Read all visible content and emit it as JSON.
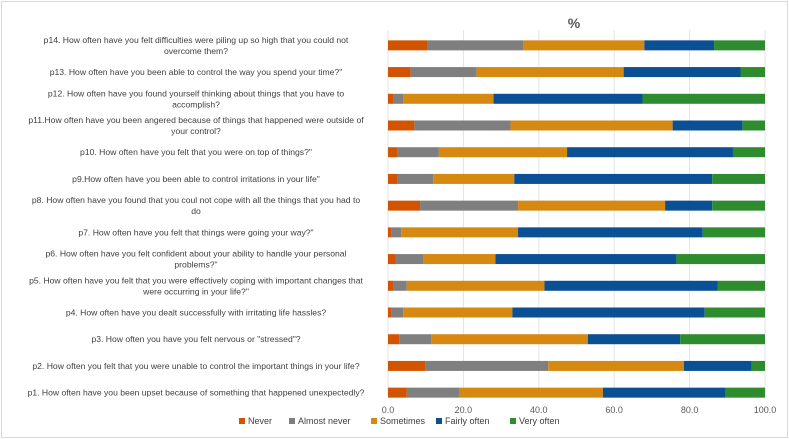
{
  "chart_data": {
    "type": "stacked-bar-horizontal",
    "title": "%",
    "xlabel": "",
    "ylabel": "",
    "xlim": [
      0,
      100
    ],
    "xticks": [
      "0.0",
      "20.0",
      "40.0",
      "60.0",
      "80.0",
      "100.0"
    ],
    "legend_position": "bottom",
    "categories": [
      [
        "p14. How often have you felt difficulties were piling up so high that you could not",
        "overcome them?"
      ],
      [
        "p13. How often have you been able to control the way you spend your time?\""
      ],
      [
        "p12. How often have you found yourself thinking about things that you have to",
        "accomplish?"
      ],
      [
        "p11.How often have you been angered because of things that happened were outside of",
        "your control?"
      ],
      [
        "p10. How often have you felt that you were on top of things?\""
      ],
      [
        "p9.How often have you been able to control irritations in your life\""
      ],
      [
        "p8. How often have you found that you coul not cope with all the things that you had to",
        "do"
      ],
      [
        "p7. How often have you felt that things were going your way?\""
      ],
      [
        "p6. How often have you felt confident about your ability to handle your personal",
        "problems?\""
      ],
      [
        "p5. How often have you felt that you were effectively coping with important changes that",
        "were occurring in your life?\""
      ],
      [
        "p4. How often have you dealt successfully with irritating life hassles?"
      ],
      [
        "p3. How often you have you felt nervous or \"stressed\"?"
      ],
      [
        "p2. How often you felt that you were unable to control the important things in your life?"
      ],
      [
        "p1. How often have you been upset because of something that happened unexpectedly?"
      ]
    ],
    "series": [
      {
        "name": "Never",
        "color": "#d35400",
        "values": [
          10.5,
          6,
          1.5,
          7,
          2.5,
          2.5,
          8.5,
          1,
          2,
          1.5,
          1,
          3,
          10,
          5
        ]
      },
      {
        "name": "Almost never",
        "color": "#7f7f7f",
        "values": [
          25.5,
          17.5,
          2.5,
          25.5,
          11,
          9.5,
          26,
          2.5,
          7.5,
          3.5,
          3,
          8.5,
          32.5,
          14
        ]
      },
      {
        "name": "Sometimes",
        "color": "#d68910",
        "values": [
          32,
          39,
          24,
          43,
          34,
          21.5,
          39,
          31,
          19,
          36.5,
          29,
          41.5,
          36,
          38
        ]
      },
      {
        "name": "Fairly often",
        "color": "#0b4f94",
        "values": [
          18.5,
          31,
          39.5,
          18.5,
          44,
          52.5,
          12.5,
          49,
          48,
          46,
          51,
          24.5,
          18,
          32.5
        ]
      },
      {
        "name": "Very often",
        "color": "#2e8b2e",
        "values": [
          13.5,
          6.5,
          32.5,
          6,
          8.5,
          14,
          14,
          16.5,
          23.5,
          12.5,
          16,
          22.5,
          3.5,
          10.5
        ]
      }
    ]
  }
}
